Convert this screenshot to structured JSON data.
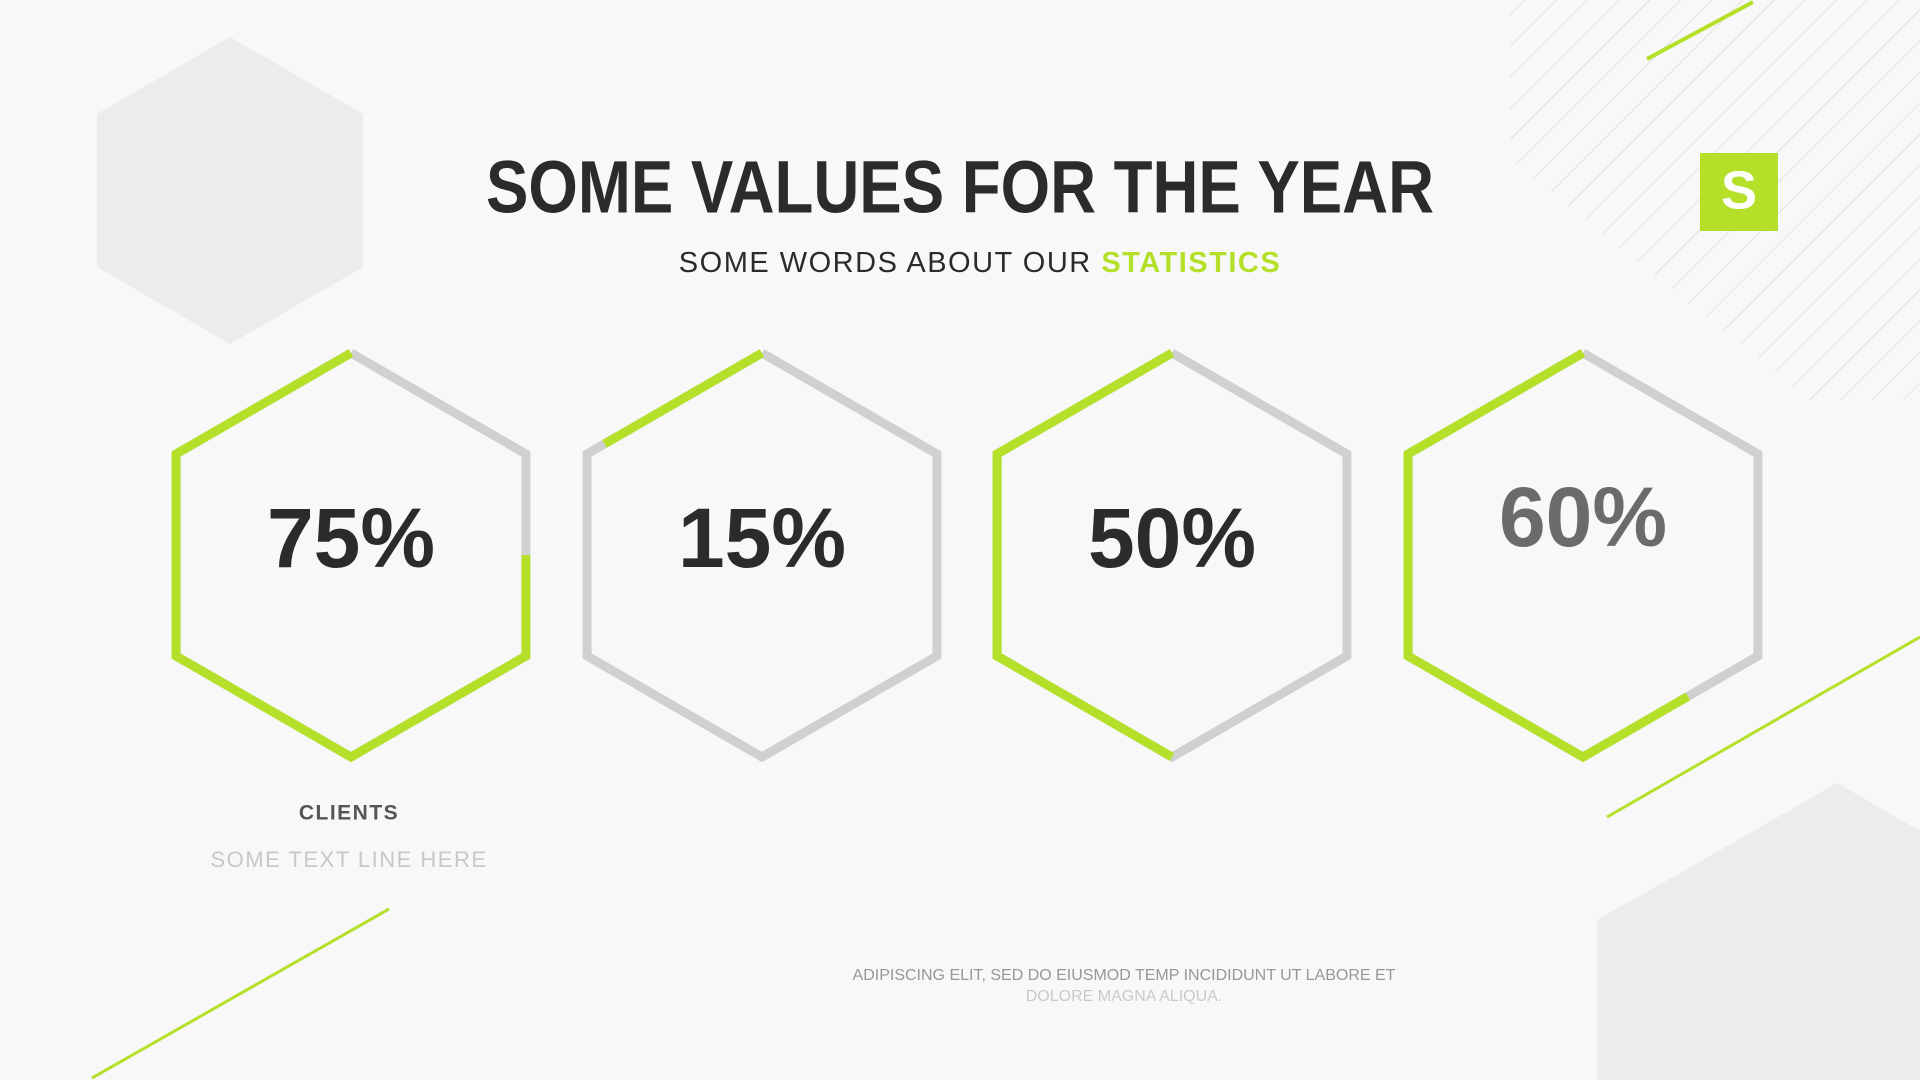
{
  "header": {
    "title": "SOME VALUES FOR THE YEAR",
    "subtitle": "SOME WORDS ABOUT OUR",
    "subtitle_highlight": "STATISTICS",
    "logo": "S"
  },
  "stats": [
    {
      "value": 75,
      "value_label": "75%",
      "label": "CLIENTS",
      "text": "SOME TEXT LINE HERE"
    },
    {
      "value": 15,
      "value_label": "15%"
    },
    {
      "value": 50,
      "value_label": "50%"
    },
    {
      "value": 60,
      "value_label": "60%"
    }
  ],
  "footer": {
    "lines": [
      "ADIPISCING ELIT, SED DO EIUSMOD TEMP INCIDIDUNT UT LABORE ET",
      "DOLORE MAGNA ALIQUA."
    ]
  }
}
